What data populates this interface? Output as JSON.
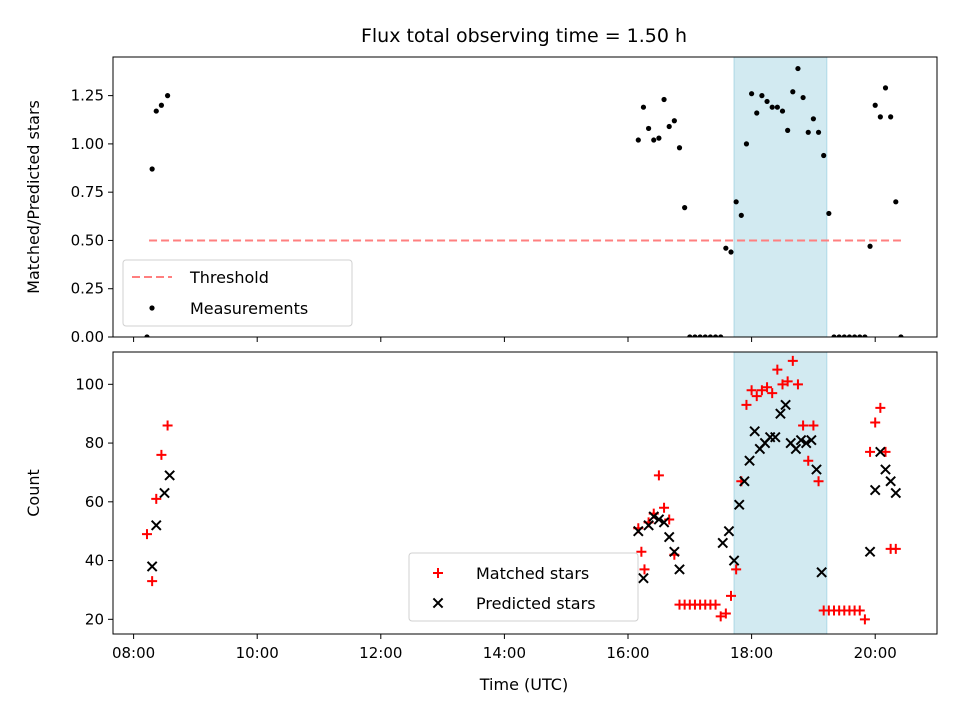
{
  "chart_data": {
    "type": "scatter",
    "title": "Flux total observing time = 1.50 h",
    "xlabel": "Time (UTC)",
    "xlim": [
      "07:40",
      "21:00"
    ],
    "xticks": [
      "08:00",
      "10:00",
      "12:00",
      "14:00",
      "16:00",
      "18:00",
      "20:00"
    ],
    "shaded_span": {
      "start": "17:43",
      "end": "19:13",
      "color": "#add8e6"
    },
    "panels": [
      {
        "ylabel": "Matched/Predicted stars",
        "ylim": [
          0,
          1.45
        ],
        "yticks": [
          "0.00",
          "0.25",
          "0.50",
          "0.75",
          "1.00",
          "1.25"
        ],
        "legend": {
          "placement": "lower-left",
          "entries": [
            "Threshold",
            "Measurements"
          ]
        },
        "threshold": {
          "name": "Threshold",
          "value": 0.5,
          "x_start": "08:15",
          "x_end": "20:25",
          "color": "#ff7f7f",
          "style": "dashed"
        },
        "series": [
          {
            "name": "Measurements",
            "color": "#000000",
            "marker": "dot",
            "points": [
              [
                "08:13",
                0.0
              ],
              [
                "08:18",
                0.87
              ],
              [
                "08:22",
                1.17
              ],
              [
                "08:27",
                1.2
              ],
              [
                "08:33",
                1.25
              ],
              [
                "16:10",
                1.02
              ],
              [
                "16:15",
                1.19
              ],
              [
                "16:20",
                1.08
              ],
              [
                "16:25",
                1.02
              ],
              [
                "16:30",
                1.03
              ],
              [
                "16:35",
                1.23
              ],
              [
                "16:40",
                1.09
              ],
              [
                "16:45",
                1.12
              ],
              [
                "16:50",
                0.98
              ],
              [
                "16:55",
                0.67
              ],
              [
                "17:00",
                0.0
              ],
              [
                "17:05",
                0.0
              ],
              [
                "17:10",
                0.0
              ],
              [
                "17:15",
                0.0
              ],
              [
                "17:20",
                0.0
              ],
              [
                "17:25",
                0.0
              ],
              [
                "17:30",
                0.0
              ],
              [
                "17:35",
                0.46
              ],
              [
                "17:40",
                0.44
              ],
              [
                "17:45",
                0.7
              ],
              [
                "17:50",
                0.63
              ],
              [
                "17:55",
                1.0
              ],
              [
                "18:00",
                1.26
              ],
              [
                "18:05",
                1.16
              ],
              [
                "18:10",
                1.25
              ],
              [
                "18:15",
                1.22
              ],
              [
                "18:20",
                1.19
              ],
              [
                "18:25",
                1.19
              ],
              [
                "18:30",
                1.17
              ],
              [
                "18:35",
                1.07
              ],
              [
                "18:40",
                1.27
              ],
              [
                "18:45",
                1.39
              ],
              [
                "18:50",
                1.24
              ],
              [
                "18:55",
                1.06
              ],
              [
                "19:00",
                1.13
              ],
              [
                "19:05",
                1.06
              ],
              [
                "19:10",
                0.94
              ],
              [
                "19:15",
                0.64
              ],
              [
                "19:20",
                0.0
              ],
              [
                "19:25",
                0.0
              ],
              [
                "19:30",
                0.0
              ],
              [
                "19:35",
                0.0
              ],
              [
                "19:40",
                0.0
              ],
              [
                "19:45",
                0.0
              ],
              [
                "19:50",
                0.0
              ],
              [
                "19:55",
                0.47
              ],
              [
                "20:00",
                1.2
              ],
              [
                "20:05",
                1.14
              ],
              [
                "20:10",
                1.29
              ],
              [
                "20:15",
                1.14
              ],
              [
                "20:20",
                0.7
              ],
              [
                "20:25",
                0.0
              ]
            ]
          }
        ]
      },
      {
        "ylabel": "Count",
        "ylim": [
          15,
          111
        ],
        "yticks": [
          "20",
          "40",
          "60",
          "80",
          "100"
        ],
        "legend": {
          "placement": "lower-center",
          "entries": [
            "Matched stars",
            "Predicted stars"
          ]
        },
        "series": [
          {
            "name": "Matched stars",
            "color": "#ff0000",
            "marker": "plus",
            "points": [
              [
                "08:13",
                49
              ],
              [
                "08:18",
                33
              ],
              [
                "08:22",
                61
              ],
              [
                "08:27",
                76
              ],
              [
                "08:33",
                86
              ],
              [
                "16:10",
                51
              ],
              [
                "16:13",
                43
              ],
              [
                "16:16",
                37
              ],
              [
                "16:20",
                53
              ],
              [
                "16:25",
                56
              ],
              [
                "16:30",
                69
              ],
              [
                "16:35",
                58
              ],
              [
                "16:40",
                54
              ],
              [
                "16:45",
                42
              ],
              [
                "16:50",
                25
              ],
              [
                "16:55",
                25
              ],
              [
                "17:00",
                25
              ],
              [
                "17:05",
                25
              ],
              [
                "17:10",
                25
              ],
              [
                "17:15",
                25
              ],
              [
                "17:20",
                25
              ],
              [
                "17:25",
                25
              ],
              [
                "17:30",
                21
              ],
              [
                "17:35",
                22
              ],
              [
                "17:40",
                28
              ],
              [
                "17:45",
                37
              ],
              [
                "17:50",
                67
              ],
              [
                "17:55",
                93
              ],
              [
                "18:00",
                98
              ],
              [
                "18:05",
                96
              ],
              [
                "18:10",
                98
              ],
              [
                "18:15",
                99
              ],
              [
                "18:20",
                97
              ],
              [
                "18:25",
                105
              ],
              [
                "18:30",
                100
              ],
              [
                "18:35",
                101
              ],
              [
                "18:40",
                108
              ],
              [
                "18:45",
                100
              ],
              [
                "18:50",
                86
              ],
              [
                "18:55",
                74
              ],
              [
                "19:00",
                86
              ],
              [
                "19:05",
                67
              ],
              [
                "19:10",
                23
              ],
              [
                "19:15",
                23
              ],
              [
                "19:20",
                23
              ],
              [
                "19:25",
                23
              ],
              [
                "19:30",
                23
              ],
              [
                "19:35",
                23
              ],
              [
                "19:40",
                23
              ],
              [
                "19:45",
                23
              ],
              [
                "19:50",
                20
              ],
              [
                "19:55",
                77
              ],
              [
                "20:00",
                87
              ],
              [
                "20:05",
                92
              ],
              [
                "20:10",
                77
              ],
              [
                "20:15",
                44
              ],
              [
                "20:20",
                44
              ]
            ]
          },
          {
            "name": "Predicted stars",
            "color": "#000000",
            "marker": "x",
            "points": [
              [
                "08:18",
                38
              ],
              [
                "08:22",
                52
              ],
              [
                "08:30",
                63
              ],
              [
                "08:35",
                69
              ],
              [
                "16:10",
                50
              ],
              [
                "16:15",
                34
              ],
              [
                "16:20",
                52
              ],
              [
                "16:25",
                55
              ],
              [
                "16:30",
                54
              ],
              [
                "16:35",
                53
              ],
              [
                "16:40",
                48
              ],
              [
                "16:45",
                43
              ],
              [
                "16:50",
                37
              ],
              [
                "17:32",
                46
              ],
              [
                "17:38",
                50
              ],
              [
                "17:43",
                40
              ],
              [
                "17:48",
                59
              ],
              [
                "17:53",
                67
              ],
              [
                "17:58",
                74
              ],
              [
                "18:03",
                84
              ],
              [
                "18:08",
                78
              ],
              [
                "18:13",
                80
              ],
              [
                "18:18",
                82
              ],
              [
                "18:23",
                82
              ],
              [
                "18:28",
                90
              ],
              [
                "18:33",
                93
              ],
              [
                "18:38",
                80
              ],
              [
                "18:43",
                78
              ],
              [
                "18:48",
                81
              ],
              [
                "18:53",
                80
              ],
              [
                "18:58",
                81
              ],
              [
                "19:03",
                71
              ],
              [
                "19:08",
                36
              ],
              [
                "19:55",
                43
              ],
              [
                "20:00",
                64
              ],
              [
                "20:05",
                77
              ],
              [
                "20:10",
                71
              ],
              [
                "20:15",
                67
              ],
              [
                "20:20",
                63
              ]
            ]
          }
        ]
      }
    ]
  }
}
